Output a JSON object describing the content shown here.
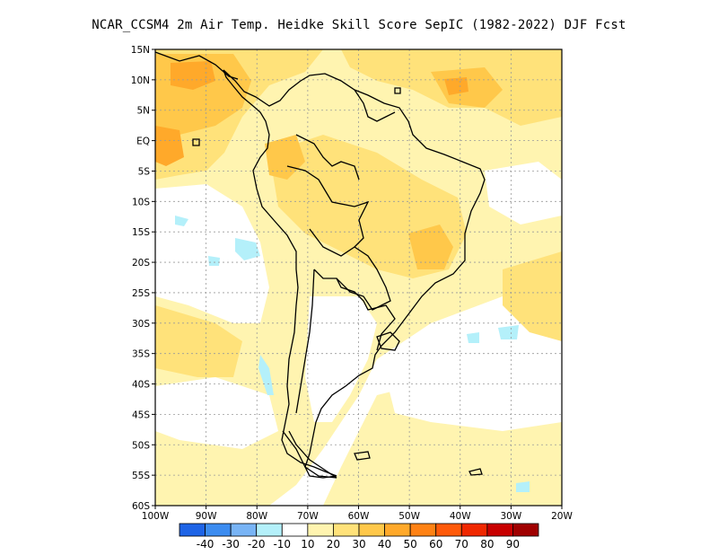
{
  "title": "NCAR_CCSM4  2m Air Temp. Heidke Skill Score SepIC (1982-2022) DJF Fcst",
  "map": {
    "lat_ticks": [
      "15N",
      "10N",
      "5N",
      "EQ",
      "5S",
      "10S",
      "15S",
      "20S",
      "25S",
      "30S",
      "35S",
      "40S",
      "45S",
      "50S",
      "55S",
      "60S"
    ],
    "lon_ticks": [
      "100W",
      "90W",
      "80W",
      "70W",
      "60W",
      "50W",
      "40W",
      "30W",
      "20W"
    ],
    "land_outline_color": "#000000",
    "gridline_style": "dashed-gray",
    "field_colors": {
      "10-20": "#fff4b0",
      "20-30": "#ffe27a",
      "30-40": "#ffc84a",
      "40-50": "#ffa92a",
      "neg_10": "#b4f0fa"
    }
  },
  "colorbar": {
    "bins": [
      {
        "color": "#1e64e6"
      },
      {
        "color": "#3c8cf0"
      },
      {
        "color": "#78b4f5"
      },
      {
        "color": "#b4f0fa"
      },
      {
        "color": "#ffffff"
      },
      {
        "color": "#fff4b0"
      },
      {
        "color": "#ffe27a"
      },
      {
        "color": "#ffc84a"
      },
      {
        "color": "#ffa92a"
      },
      {
        "color": "#ff8214"
      },
      {
        "color": "#ff5a0a"
      },
      {
        "color": "#f02800"
      },
      {
        "color": "#c80000"
      },
      {
        "color": "#a00000"
      }
    ],
    "labels": [
      "-40",
      "-30",
      "-20",
      "-10",
      "10",
      "20",
      "30",
      "40",
      "50",
      "60",
      "70",
      "80",
      "90"
    ]
  }
}
